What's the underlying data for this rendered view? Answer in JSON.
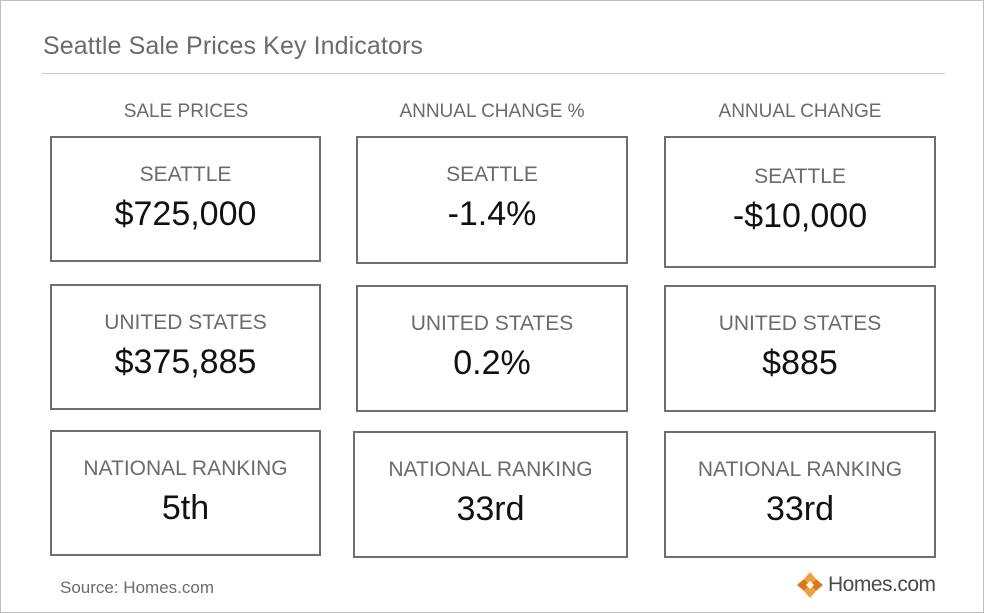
{
  "title": "Seattle Sale Prices Key Indicators",
  "columns": [
    {
      "header": "SALE PRICES",
      "cards": [
        {
          "label": "SEATTLE",
          "value": "$725,000"
        },
        {
          "label": "UNITED STATES",
          "value": "$375,885"
        },
        {
          "label": "NATIONAL RANKING",
          "value": "5th"
        }
      ]
    },
    {
      "header": "ANNUAL CHANGE %",
      "cards": [
        {
          "label": "SEATTLE",
          "value": "-1.4%"
        },
        {
          "label": "UNITED STATES",
          "value": "0.2%"
        },
        {
          "label": "NATIONAL RANKING",
          "value": "33rd"
        }
      ]
    },
    {
      "header": "ANNUAL CHANGE",
      "cards": [
        {
          "label": "SEATTLE",
          "value": "-$10,000"
        },
        {
          "label": "UNITED STATES",
          "value": "$885"
        },
        {
          "label": "NATIONAL RANKING",
          "value": "33rd"
        }
      ]
    }
  ],
  "footer": {
    "source": "Source: Homes.com",
    "brand": "Homes.com",
    "brand_icon": "homes-com-logo-icon"
  },
  "colors": {
    "logo_orange": "#f0a040",
    "logo_dark_orange": "#d97a1a"
  }
}
